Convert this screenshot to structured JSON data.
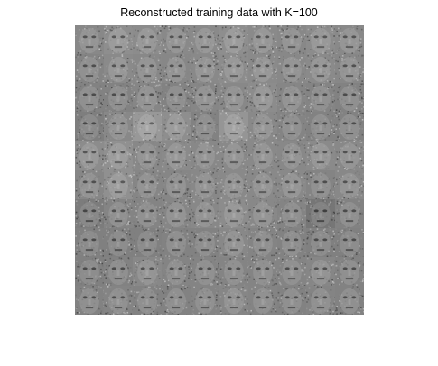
{
  "figure": {
    "title": "Reconstructed training data with K=100"
  },
  "mosaic": {
    "rows": 10,
    "cols": 10,
    "tile_brightness": [
      [
        0.55,
        0.6,
        0.58,
        0.56,
        0.57,
        0.6,
        0.57,
        0.55,
        0.58,
        0.56
      ],
      [
        0.52,
        0.57,
        0.55,
        0.54,
        0.56,
        0.58,
        0.57,
        0.55,
        0.57,
        0.54
      ],
      [
        0.5,
        0.5,
        0.53,
        0.5,
        0.53,
        0.55,
        0.58,
        0.53,
        0.52,
        0.5
      ],
      [
        0.47,
        0.55,
        0.68,
        0.6,
        0.5,
        0.66,
        0.56,
        0.52,
        0.5,
        0.5
      ],
      [
        0.58,
        0.62,
        0.55,
        0.57,
        0.55,
        0.56,
        0.56,
        0.55,
        0.57,
        0.55
      ],
      [
        0.53,
        0.62,
        0.53,
        0.53,
        0.55,
        0.56,
        0.56,
        0.56,
        0.52,
        0.55
      ],
      [
        0.45,
        0.52,
        0.52,
        0.53,
        0.55,
        0.58,
        0.55,
        0.52,
        0.4,
        0.5
      ],
      [
        0.48,
        0.48,
        0.48,
        0.5,
        0.5,
        0.55,
        0.52,
        0.5,
        0.48,
        0.48
      ],
      [
        0.48,
        0.5,
        0.55,
        0.52,
        0.52,
        0.52,
        0.52,
        0.52,
        0.53,
        0.5
      ],
      [
        0.5,
        0.52,
        0.5,
        0.5,
        0.52,
        0.53,
        0.52,
        0.5,
        0.52,
        0.5
      ]
    ]
  }
}
